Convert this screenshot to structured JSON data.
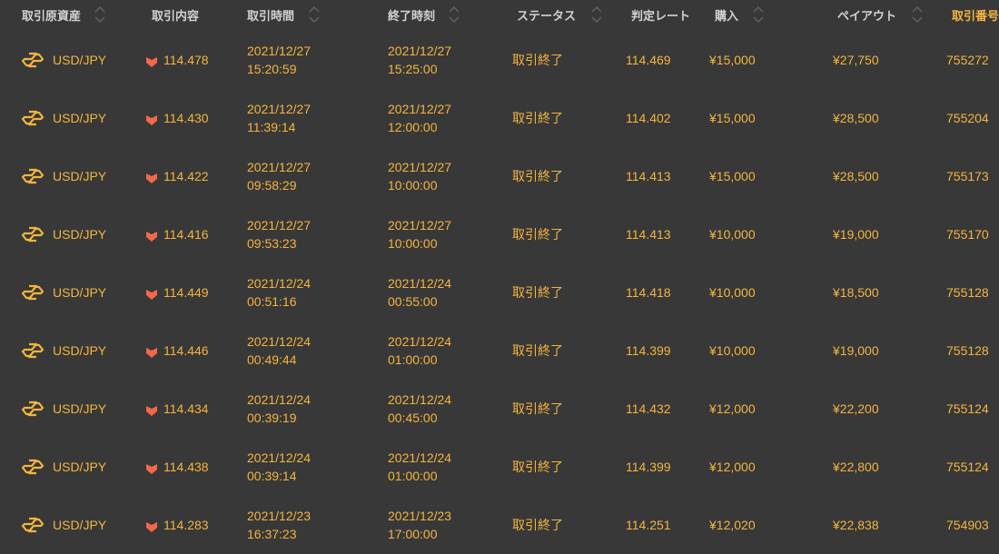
{
  "header": {
    "columns": [
      {
        "label": "取引原資産",
        "sortable": true
      },
      {
        "label": "取引内容",
        "sortable": false
      },
      {
        "label": "取引時間",
        "sortable": true
      },
      {
        "label": "終了時刻",
        "sortable": true
      },
      {
        "label": "ステータス",
        "sortable": true
      },
      {
        "label": "判定レート",
        "sortable": false
      },
      {
        "label": "購入",
        "sortable": true
      },
      {
        "label": "ペイアウト",
        "sortable": true
      },
      {
        "label": "取引番号",
        "sortable": false
      }
    ]
  },
  "colors": {
    "background": "#383838",
    "value": "#f4b53f",
    "header": "#d2d2d2",
    "down_arrow": "#f2684a"
  },
  "rows": [
    {
      "asset": "USD/JPY",
      "direction": "down",
      "entry": "114.478",
      "start_date": "2021/12/27",
      "start_time": "15:20:59",
      "end_date": "2021/12/27",
      "end_time": "15:25:00",
      "status": "取引終了",
      "rate": "114.469",
      "buy": "¥15,000",
      "payout": "¥27,750",
      "id": "755272"
    },
    {
      "asset": "USD/JPY",
      "direction": "down",
      "entry": "114.430",
      "start_date": "2021/12/27",
      "start_time": "11:39:14",
      "end_date": "2021/12/27",
      "end_time": "12:00:00",
      "status": "取引終了",
      "rate": "114.402",
      "buy": "¥15,000",
      "payout": "¥28,500",
      "id": "755204"
    },
    {
      "asset": "USD/JPY",
      "direction": "down",
      "entry": "114.422",
      "start_date": "2021/12/27",
      "start_time": "09:58:29",
      "end_date": "2021/12/27",
      "end_time": "10:00:00",
      "status": "取引終了",
      "rate": "114.413",
      "buy": "¥15,000",
      "payout": "¥28,500",
      "id": "755173"
    },
    {
      "asset": "USD/JPY",
      "direction": "down",
      "entry": "114.416",
      "start_date": "2021/12/27",
      "start_time": "09:53:23",
      "end_date": "2021/12/27",
      "end_time": "10:00:00",
      "status": "取引終了",
      "rate": "114.413",
      "buy": "¥10,000",
      "payout": "¥19,000",
      "id": "755170"
    },
    {
      "asset": "USD/JPY",
      "direction": "down",
      "entry": "114.449",
      "start_date": "2021/12/24",
      "start_time": "00:51:16",
      "end_date": "2021/12/24",
      "end_time": "00:55:00",
      "status": "取引終了",
      "rate": "114.418",
      "buy": "¥10,000",
      "payout": "¥18,500",
      "id": "755128"
    },
    {
      "asset": "USD/JPY",
      "direction": "down",
      "entry": "114.446",
      "start_date": "2021/12/24",
      "start_time": "00:49:44",
      "end_date": "2021/12/24",
      "end_time": "01:00:00",
      "status": "取引終了",
      "rate": "114.399",
      "buy": "¥10,000",
      "payout": "¥19,000",
      "id": "755128"
    },
    {
      "asset": "USD/JPY",
      "direction": "down",
      "entry": "114.434",
      "start_date": "2021/12/24",
      "start_time": "00:39:19",
      "end_date": "2021/12/24",
      "end_time": "00:45:00",
      "status": "取引終了",
      "rate": "114.432",
      "buy": "¥12,000",
      "payout": "¥22,200",
      "id": "755124"
    },
    {
      "asset": "USD/JPY",
      "direction": "down",
      "entry": "114.438",
      "start_date": "2021/12/24",
      "start_time": "00:39:14",
      "end_date": "2021/12/24",
      "end_time": "01:00:00",
      "status": "取引終了",
      "rate": "114.399",
      "buy": "¥12,000",
      "payout": "¥22,800",
      "id": "755124"
    },
    {
      "asset": "USD/JPY",
      "direction": "down",
      "entry": "114.283",
      "start_date": "2021/12/23",
      "start_time": "16:37:23",
      "end_date": "2021/12/23",
      "end_time": "17:00:00",
      "status": "取引終了",
      "rate": "114.251",
      "buy": "¥12,020",
      "payout": "¥22,838",
      "id": "754903"
    }
  ]
}
